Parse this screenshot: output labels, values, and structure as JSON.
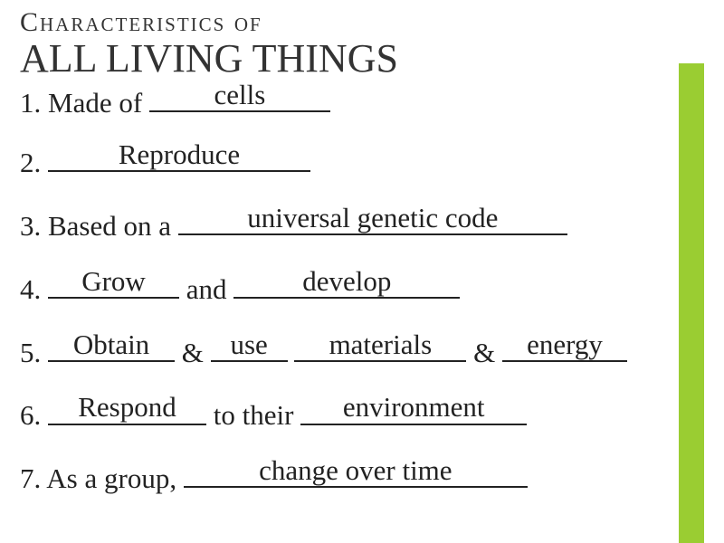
{
  "title": {
    "line1": "Characteristics of",
    "line2": "ALL LIVING THINGS"
  },
  "items": {
    "i1": {
      "prefix": "1. Made of ",
      "fill1": "cells"
    },
    "i2": {
      "prefix": "2. ",
      "fill1": "Reproduce"
    },
    "i3": {
      "prefix": "3. Based on a ",
      "fill1": "universal genetic code"
    },
    "i4": {
      "prefix": "4. ",
      "fill1": "Grow",
      "mid": " and ",
      "fill2": "develop"
    },
    "i5": {
      "prefix": "5. ",
      "fill1": "Obtain",
      "sep1": " & ",
      "fill2": "use",
      "sep2": "  ",
      "fill3": "materials",
      "sep3": " & ",
      "fill4": "energy"
    },
    "i6": {
      "prefix": "6. ",
      "fill1": "Respond",
      "mid": " to their ",
      "fill2": "environment"
    },
    "i7": {
      "prefix": "7. As a group, ",
      "fill1": "change over time"
    }
  },
  "colors": {
    "accent": "#9acd32",
    "text": "#222222",
    "background": "#ffffff"
  }
}
